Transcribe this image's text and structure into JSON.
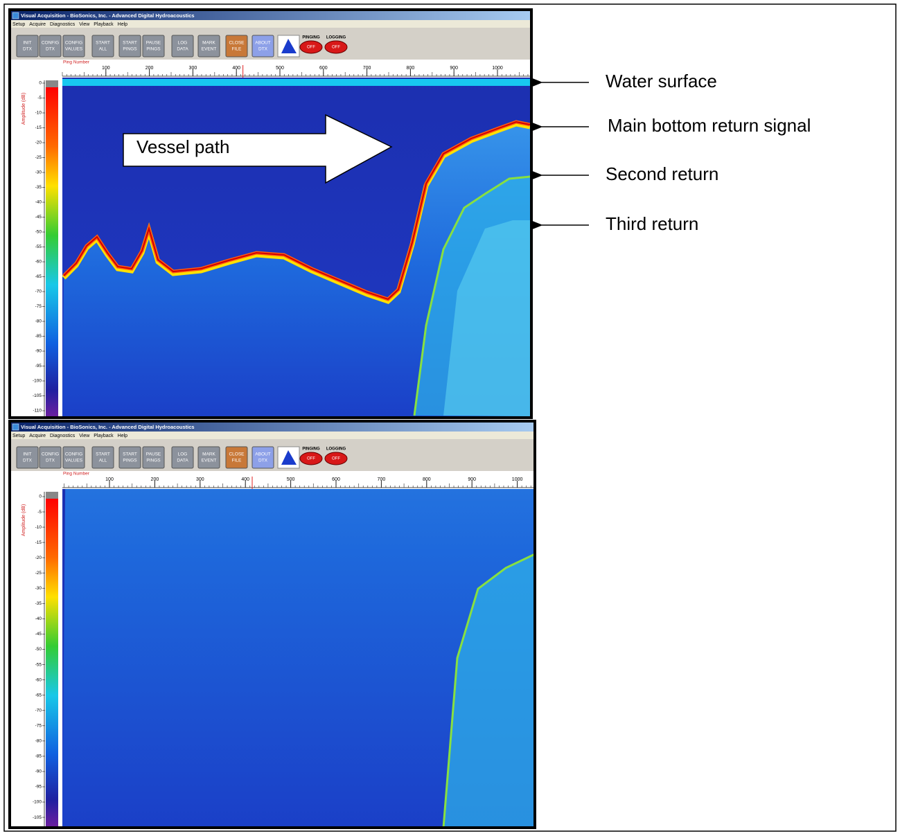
{
  "windows": [
    {
      "title": "Visual Acquisition - BioSonics, Inc. - Advanced Digital Hydroacoustics",
      "menu": [
        "Setup",
        "Acquire",
        "Diagnostics",
        "View",
        "Playback",
        "Help"
      ],
      "buttons": [
        [
          "INIT",
          "DTX"
        ],
        [
          "CONFIG",
          "DTX"
        ],
        [
          "CONFIG",
          "VALUES"
        ],
        [
          "START",
          "ALL"
        ],
        [
          "START",
          "PINGS"
        ],
        [
          "PAUSE",
          "PINGS"
        ],
        [
          "LOG",
          "DATA"
        ],
        [
          "MARK",
          "EVENT"
        ],
        [
          "CLOSE",
          "FILE"
        ],
        [
          "ABOUT",
          "DTX"
        ]
      ],
      "status": [
        {
          "label": "PINGING",
          "state": "OFF"
        },
        {
          "label": "LOGGING",
          "state": "OFF"
        }
      ],
      "x_axis_label": "Ping Number",
      "x_ticks": [
        100,
        200,
        300,
        400,
        500,
        600,
        700,
        800,
        900,
        1000
      ],
      "y_axis_label": "Amplitude (dB)",
      "y_ticks": [
        0,
        -5,
        -10,
        -15,
        -20,
        -25,
        -30,
        -35,
        -40,
        -45,
        -50,
        -55,
        -60,
        -65,
        -70,
        -75,
        -80,
        -85,
        -90,
        -95,
        -100,
        -105,
        -110
      ]
    },
    {
      "title": "Visual Acquisition - BioSonics, Inc. - Advanced Digital Hydroacoustics",
      "menu": [
        "Setup",
        "Acquire",
        "Diagnostics",
        "View",
        "Playback",
        "Help"
      ],
      "buttons": [
        [
          "INIT",
          "DTX"
        ],
        [
          "CONFIG",
          "DTX"
        ],
        [
          "CONFIG",
          "VALUES"
        ],
        [
          "START",
          "ALL"
        ],
        [
          "START",
          "PINGS"
        ],
        [
          "PAUSE",
          "PINGS"
        ],
        [
          "LOG",
          "DATA"
        ],
        [
          "MARK",
          "EVENT"
        ],
        [
          "CLOSE",
          "FILE"
        ],
        [
          "ABOUT",
          "DTX"
        ]
      ],
      "status": [
        {
          "label": "PINGING",
          "state": "OFF"
        },
        {
          "label": "LOGGING",
          "state": "OFF"
        }
      ],
      "x_axis_label": "Ping Number",
      "x_ticks": [
        100,
        200,
        300,
        400,
        500,
        600,
        700,
        800,
        900,
        1000
      ],
      "y_axis_label": "Amplitude (dB)",
      "y_ticks": [
        0,
        -5,
        -10,
        -15,
        -20,
        -25,
        -30,
        -35,
        -40,
        -45,
        -50,
        -55,
        -60,
        -65,
        -70,
        -75,
        -80,
        -85,
        -90,
        -95,
        -100,
        -105
      ]
    }
  ],
  "annotations": {
    "vessel_path": "Vessel path",
    "labels": [
      "Water surface",
      "Main bottom return signal",
      "Second return",
      "Third return"
    ]
  }
}
